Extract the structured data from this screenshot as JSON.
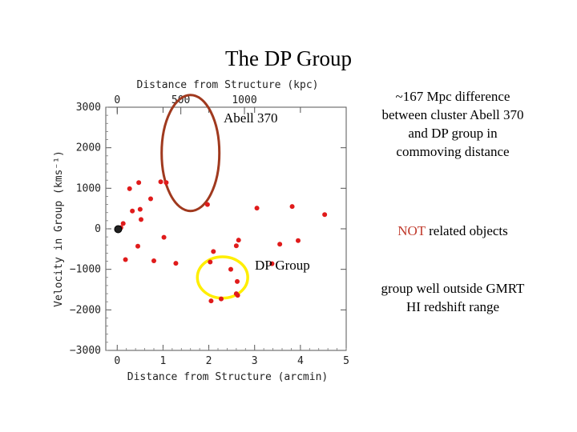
{
  "slide": {
    "title": "The DP Group"
  },
  "notes": {
    "distance_difference": "~167 Mpc difference between cluster Abell 370 and DP group in commoving distance",
    "not_related_emphasis": "NOT",
    "not_related_rest": " related objects",
    "redshift_range": "group well outside GMRT HI redshift range"
  },
  "colors": {
    "point": "#e01b1b",
    "abell_ellipse": "#a0391e",
    "dp_circle": "#ffee00",
    "emphasis": "#c0392b"
  },
  "chart_data": {
    "type": "scatter",
    "title": "",
    "xlabel": "Distance from Structure (arcmin)",
    "x2label": "Distance from Structure (kpc)",
    "ylabel": "Velocity in Group (kms⁻¹)",
    "xlim": [
      -0.25,
      5
    ],
    "ylim": [
      -3000,
      3000
    ],
    "x_ticks": [
      0,
      1,
      2,
      3,
      4,
      5
    ],
    "x_tick_labels": [
      "0",
      "1",
      "2",
      "3",
      "4",
      "5"
    ],
    "y_ticks": [
      3000,
      2000,
      1000,
      0,
      -1000,
      -2000,
      -3000
    ],
    "y_tick_labels": [
      "3000",
      "2000",
      "1000",
      "0",
      "−1000",
      "−2000",
      "−3000"
    ],
    "top_ticks_kpc": [
      0,
      500,
      1000
    ],
    "top_tick_labels": [
      "0",
      "500",
      "1000"
    ],
    "kpc_per_arcmin": 360,
    "series": [
      {
        "name": "galaxies",
        "x": [
          0.08,
          0.13,
          0.33,
          0.5,
          0.73,
          0.27,
          0.47,
          0.52,
          0.95,
          1.07,
          0.18,
          0.45,
          0.8,
          1.02,
          1.28,
          1.97,
          3.05,
          3.82,
          4.53,
          2.65,
          2.6,
          3.55,
          3.95,
          3.38,
          2.1,
          2.03,
          2.48,
          2.62,
          2.63,
          2.27,
          2.05,
          2.6
        ],
        "y": [
          30,
          130,
          440,
          480,
          740,
          990,
          1140,
          230,
          1160,
          1140,
          -760,
          -430,
          -790,
          -210,
          -850,
          600,
          510,
          550,
          350,
          -280,
          -420,
          -380,
          -290,
          -860,
          -560,
          -820,
          -1000,
          -1300,
          -1640,
          -1730,
          -1780,
          -1600
        ]
      }
    ],
    "highlight_points": [
      {
        "x": 0.02,
        "y": -10
      }
    ],
    "regions": [
      {
        "name": "Abell 370",
        "label": "Abell 370",
        "cx": 1.6,
        "cy": 1870,
        "rx": 0.63,
        "ry": 1430
      },
      {
        "name": "DP Group",
        "label": "DP Group",
        "cx": 2.3,
        "cy": -1200,
        "rx": 0.55,
        "ry": 510
      }
    ]
  }
}
